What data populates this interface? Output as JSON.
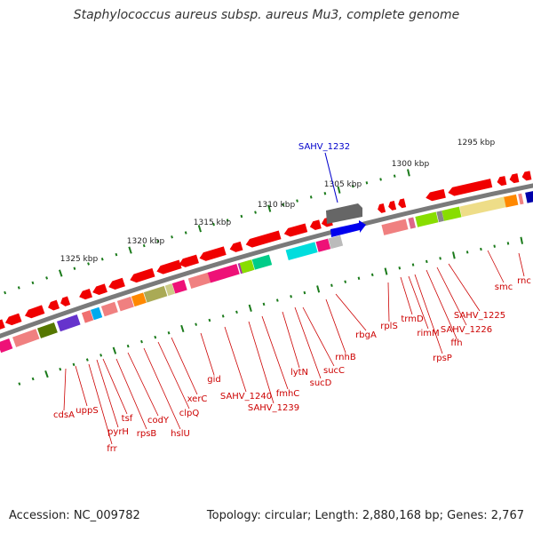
{
  "title": "Staphylococcus aureus subsp. aureus Mu3, complete genome",
  "footer": {
    "accession": "Accession: NC_009782",
    "topology": "Topology: circular; Length: 2,880,168 bp; Genes: 2,767"
  },
  "colors": {
    "backbone": "#8a8a8a",
    "tick": "#1a7a1a",
    "label": "#cc0000",
    "highlight": "#0000cc"
  },
  "scale_labels": [
    {
      "text": "1295 kbp"
    },
    {
      "text": "1300 kbp"
    },
    {
      "text": "1305 kbp"
    },
    {
      "text": "1310 kbp"
    },
    {
      "text": "1315 kbp"
    },
    {
      "text": "1320 kbp"
    },
    {
      "text": "1325 kbp"
    }
  ],
  "highlight_gene": "SAHV_1232",
  "gene_labels": [
    "cdsA",
    "uppS",
    "frr",
    "pyrH",
    "tsf",
    "rpsB",
    "codY",
    "hslU",
    "clpQ",
    "xerC",
    "gid",
    "SAHV_1240",
    "SAHV_1239",
    "fmhC",
    "lytN",
    "sucD",
    "sucC",
    "rnhB",
    "rbgA",
    "rplS",
    "trmD",
    "rimM",
    "rpsP",
    "ffh",
    "SAHV_1226",
    "SAHV_1225",
    "smc",
    "rnc"
  ]
}
